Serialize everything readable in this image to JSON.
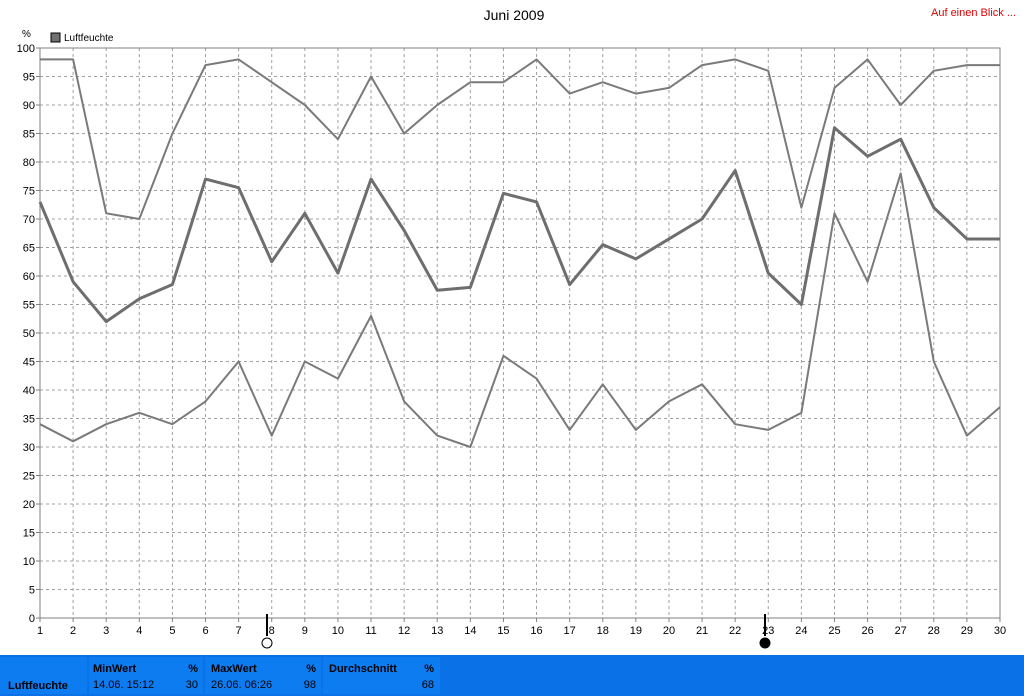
{
  "chart_data": {
    "type": "line",
    "title": "Juni 2009",
    "link": "Auf einen Blick ...",
    "y_unit": "%",
    "legend": "Luftfeuchte",
    "legend_color": "#707070",
    "x": [
      1,
      2,
      3,
      4,
      5,
      6,
      7,
      8,
      9,
      10,
      11,
      12,
      13,
      14,
      15,
      16,
      17,
      18,
      19,
      20,
      21,
      22,
      23,
      24,
      25,
      26,
      27,
      28,
      29,
      30
    ],
    "xlim": [
      1,
      30
    ],
    "xticks": [
      1,
      2,
      3,
      4,
      5,
      6,
      7,
      8,
      9,
      10,
      11,
      12,
      13,
      14,
      15,
      16,
      17,
      18,
      19,
      20,
      21,
      22,
      23,
      24,
      25,
      26,
      27,
      28,
      29,
      30
    ],
    "ylim": [
      0,
      100
    ],
    "yticks": [
      0,
      5,
      10,
      15,
      20,
      25,
      30,
      35,
      40,
      45,
      50,
      55,
      60,
      65,
      70,
      75,
      80,
      85,
      90,
      95,
      100
    ],
    "grid": true,
    "series": [
      {
        "color": "#7a7a7a",
        "values": [
          98,
          98,
          71,
          70,
          85,
          97,
          98,
          94,
          90,
          84,
          95,
          85,
          90,
          94,
          94,
          98,
          92,
          94,
          92,
          93,
          97,
          98,
          96,
          72,
          93,
          98,
          90,
          96,
          97,
          97
        ]
      },
      {
        "color": "#6e6e6e",
        "values": [
          73,
          59,
          52,
          56,
          58.5,
          77,
          75.5,
          62.5,
          71,
          60.5,
          77,
          68,
          57.5,
          58,
          74.5,
          73,
          58.5,
          65.5,
          63,
          66.5,
          70,
          78.5,
          60.5,
          55,
          86,
          81,
          84,
          72,
          66.5,
          66.5
        ]
      },
      {
        "color": "#7a7a7a",
        "values": [
          34,
          31,
          34,
          36,
          34,
          38,
          45,
          32,
          45,
          42,
          53,
          38,
          32,
          30,
          46,
          42,
          33,
          41,
          33,
          38,
          41,
          34,
          33,
          36,
          71,
          59,
          78,
          45,
          32,
          37
        ]
      }
    ]
  },
  "summary": {
    "label": "Luftfeuchte",
    "stats": [
      {
        "title": "MinWert",
        "unit": "%",
        "time": "14.06. 15:12",
        "value": 30
      },
      {
        "title": "MaxWert",
        "unit": "%",
        "time": "26.06. 06:26",
        "value": 98
      },
      {
        "title": "Durchschnitt",
        "unit": "%",
        "value": 68
      }
    ]
  }
}
